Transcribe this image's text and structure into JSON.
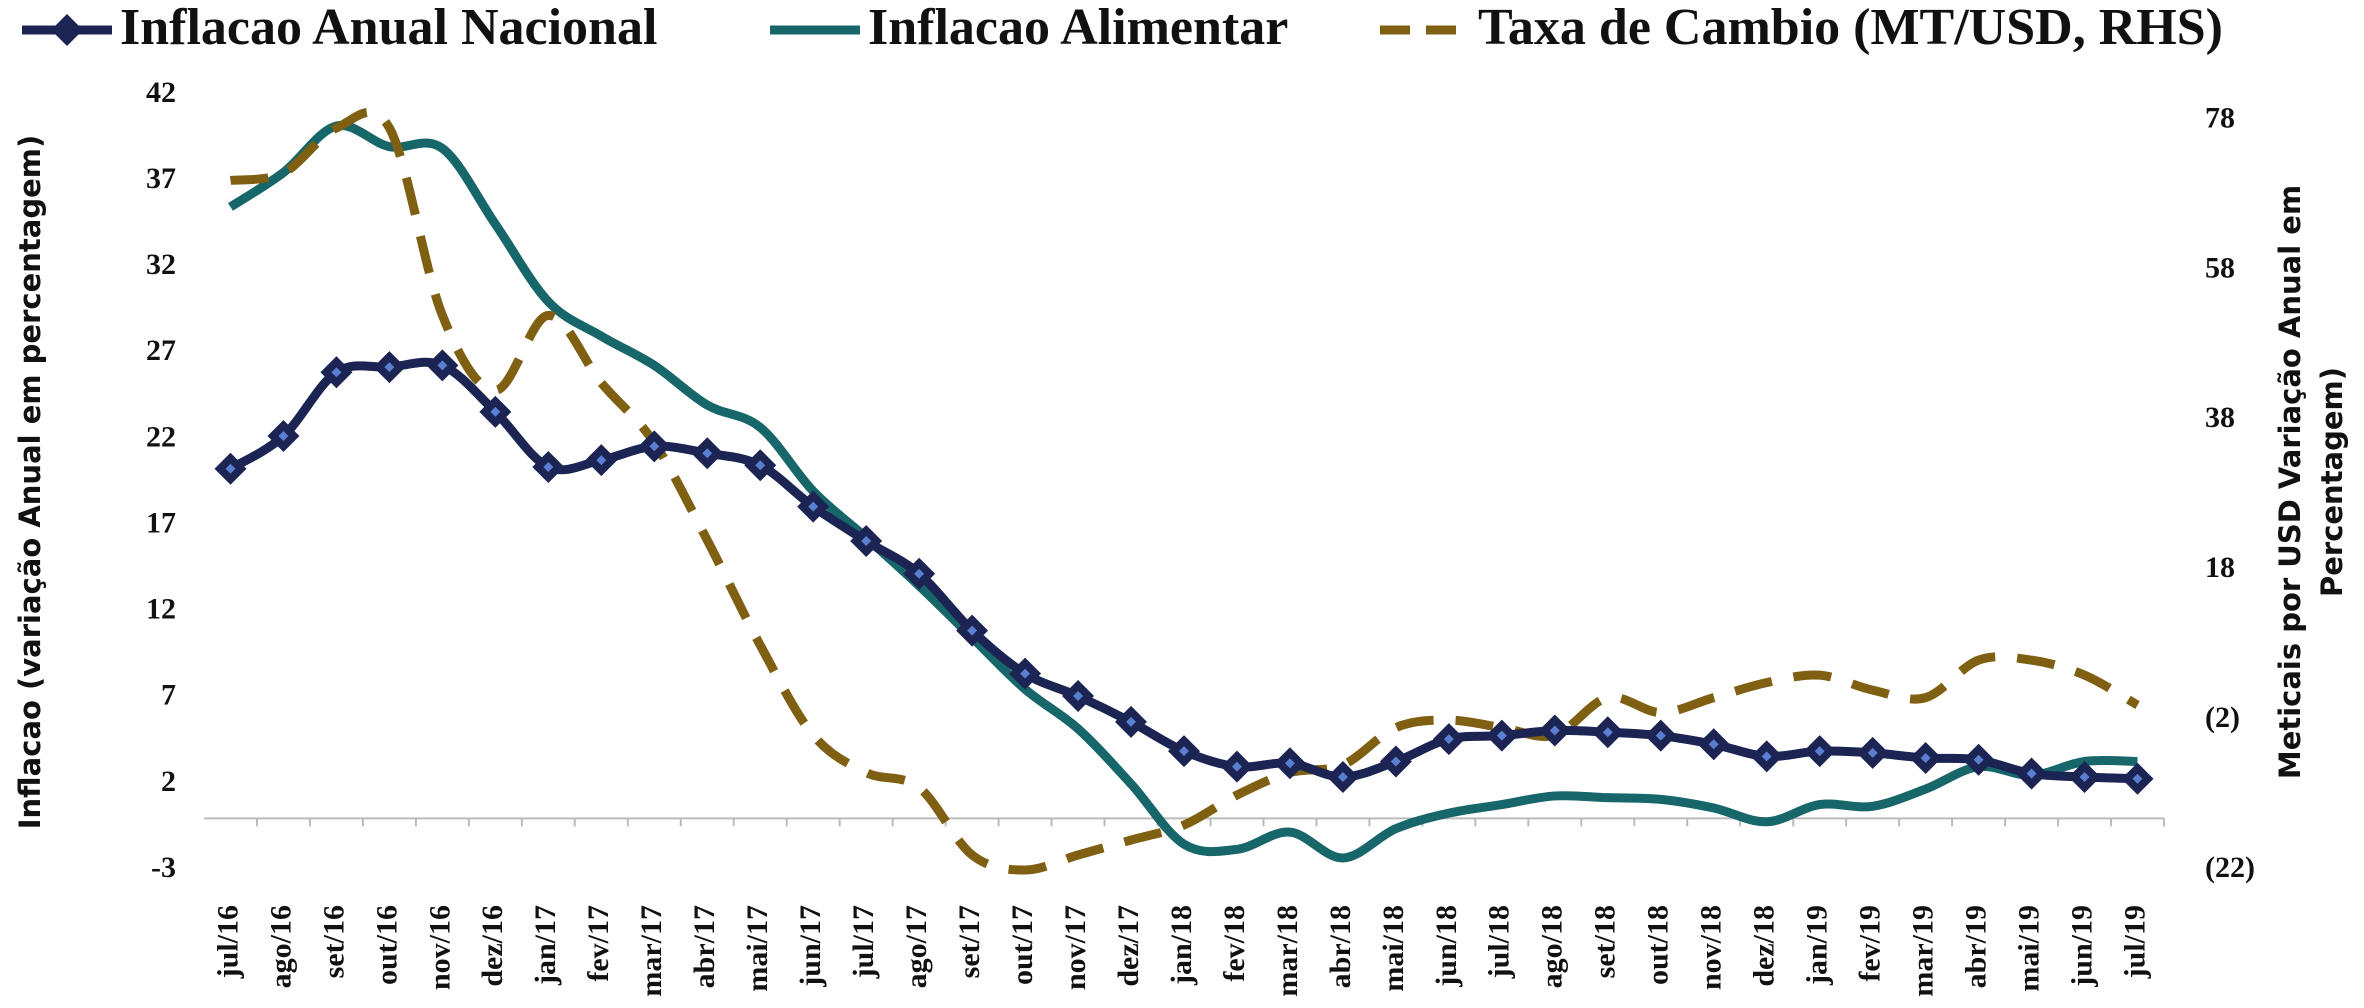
{
  "chart_data": {
    "type": "line",
    "ylabel": "Inflacao (variação Anual em percentagem)",
    "y2label": [
      "Meticais por USD Variação Anual em",
      "Percentagem)"
    ],
    "categories": [
      "jul/16",
      "ago/16",
      "set/16",
      "out/16",
      "nov/16",
      "dez/16",
      "jan/17",
      "fev/17",
      "mar/17",
      "abr/17",
      "mai/17",
      "jun/17",
      "jul/17",
      "ago/17",
      "set/17",
      "out/17",
      "nov/17",
      "dez/17",
      "jan/18",
      "fev/18",
      "mar/18",
      "abr/18",
      "mai/18",
      "jun/18",
      "jul/18",
      "ago/18",
      "set/18",
      "out/18",
      "nov/18",
      "dez/18",
      "jan/19",
      "fev/19",
      "mar/19",
      "abr/19",
      "mai/19",
      "jun/19",
      "jul/19"
    ],
    "series": [
      {
        "name": "Inflacao Anual Nacional",
        "color": "#1b2452",
        "marker": "diamond",
        "values": [
          20.3,
          22.2,
          25.9,
          26.2,
          26.3,
          23.6,
          20.4,
          20.8,
          21.6,
          21.2,
          20.5,
          18.1,
          16.1,
          14.2,
          10.9,
          8.4,
          7.1,
          5.6,
          3.9,
          3.0,
          3.2,
          2.4,
          3.3,
          4.6,
          4.8,
          5.1,
          5.0,
          4.8,
          4.3,
          3.6,
          3.9,
          3.8,
          3.5,
          3.4,
          2.6,
          2.4,
          2.3
        ]
      },
      {
        "name": "Inflacao Alimentar",
        "color": "#17666a",
        "values": [
          35.5,
          37.5,
          40.2,
          39.0,
          38.9,
          34.5,
          30.0,
          28.0,
          26.3,
          24.0,
          22.7,
          19.0,
          16.3,
          13.5,
          10.5,
          7.5,
          5.2,
          2.0,
          -1.5,
          -1.8,
          -0.8,
          -2.3,
          -0.6,
          0.3,
          0.8,
          1.3,
          1.2,
          1.1,
          0.6,
          -0.2,
          0.8,
          0.7,
          1.7,
          3.0,
          2.5,
          3.3,
          3.3
        ]
      },
      {
        "name": "Taxa de Cambio (MT/USD, RHS)",
        "color": "#7f5f12",
        "dashed": true,
        "axis": "y2",
        "values": [
          70,
          71,
          77,
          77,
          52,
          42,
          52,
          43,
          35,
          22,
          8,
          -4,
          -9,
          -11,
          -20,
          -22,
          -20,
          -18,
          -16,
          -12,
          -9,
          -8,
          -3,
          -2,
          -3,
          -4,
          1,
          -1,
          1,
          3,
          4,
          2,
          1,
          6,
          6,
          4,
          0
        ]
      }
    ],
    "ylim": [
      -3,
      42
    ],
    "yticks": [
      -3,
      2,
      7,
      12,
      17,
      22,
      27,
      32,
      37,
      42
    ],
    "y2lim": [
      -22,
      81.4
    ],
    "y2ticks": [
      {
        "value": -22,
        "label": "(22)"
      },
      {
        "value": -2,
        "label": "(2)"
      },
      18,
      38,
      58,
      78
    ]
  }
}
